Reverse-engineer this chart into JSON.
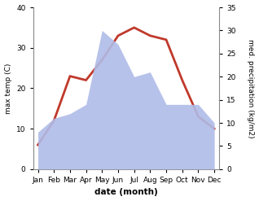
{
  "months": [
    "Jan",
    "Feb",
    "Mar",
    "Apr",
    "May",
    "Jun",
    "Jul",
    "Aug",
    "Sep",
    "Oct",
    "Nov",
    "Dec"
  ],
  "month_indices": [
    0,
    1,
    2,
    3,
    4,
    5,
    6,
    7,
    8,
    9,
    10,
    11
  ],
  "temperature": [
    6,
    12,
    23,
    22,
    27,
    33,
    35,
    33,
    32,
    22,
    13,
    10
  ],
  "precipitation": [
    8,
    11,
    12,
    14,
    30,
    27,
    20,
    21,
    14,
    14,
    14,
    10
  ],
  "temp_color": "#c0392b",
  "precip_color_fill": "#b0bce8",
  "temp_ylim": [
    0,
    40
  ],
  "precip_ylim": [
    0,
    35
  ],
  "temp_yticks": [
    0,
    10,
    20,
    30,
    40
  ],
  "precip_yticks": [
    0,
    5,
    10,
    15,
    20,
    25,
    30,
    35
  ],
  "ylabel_left": "max temp (C)",
  "ylabel_right": "med. precipitation (kg/m2)",
  "xlabel": "date (month)",
  "line_width": 2.0,
  "bg_color": "#ffffff"
}
